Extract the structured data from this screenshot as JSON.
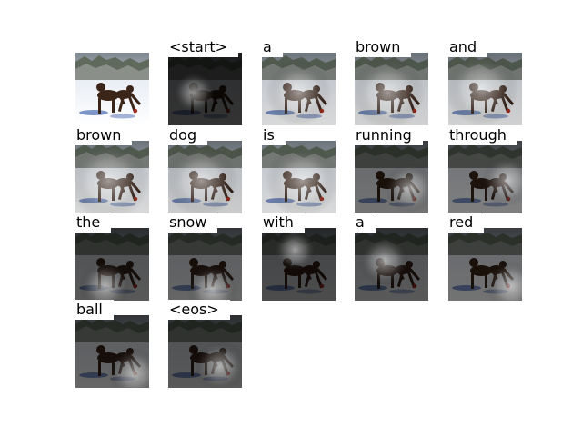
{
  "figure": {
    "source_image_name": "dog-in-snow-photo",
    "attention_words": [
      {
        "word": "<start>",
        "focus": [
          0.35,
          0.55
        ],
        "spread": 0.3,
        "dark": 0.8
      },
      {
        "word": "a",
        "focus": [
          0.5,
          0.55
        ],
        "spread": 0.45,
        "dark": 0.15
      },
      {
        "word": "brown",
        "focus": [
          0.45,
          0.55
        ],
        "spread": 0.5,
        "dark": 0.18
      },
      {
        "word": "and",
        "focus": [
          0.45,
          0.5
        ],
        "spread": 0.5,
        "dark": 0.18
      },
      {
        "word": "brown",
        "focus": [
          0.45,
          0.55
        ],
        "spread": 0.55,
        "dark": 0.15
      },
      {
        "word": "dog",
        "focus": [
          0.45,
          0.55
        ],
        "spread": 0.5,
        "dark": 0.2
      },
      {
        "word": "is",
        "focus": [
          0.55,
          0.55
        ],
        "spread": 0.5,
        "dark": 0.15
      },
      {
        "word": "running",
        "focus": [
          0.75,
          0.65
        ],
        "spread": 0.35,
        "dark": 0.55
      },
      {
        "word": "through",
        "focus": [
          0.8,
          0.55
        ],
        "spread": 0.35,
        "dark": 0.5
      },
      {
        "word": "the",
        "focus": [
          0.4,
          0.8
        ],
        "spread": 0.35,
        "dark": 0.65
      },
      {
        "word": "snow",
        "focus": [
          0.6,
          0.85
        ],
        "spread": 0.35,
        "dark": 0.6
      },
      {
        "word": "with",
        "focus": [
          0.45,
          0.3
        ],
        "spread": 0.3,
        "dark": 0.7
      },
      {
        "word": "a",
        "focus": [
          0.4,
          0.45
        ],
        "spread": 0.35,
        "dark": 0.65
      },
      {
        "word": "red",
        "focus": [
          0.85,
          0.8
        ],
        "spread": 0.35,
        "dark": 0.55
      },
      {
        "word": "ball",
        "focus": [
          0.8,
          0.8
        ],
        "spread": 0.35,
        "dark": 0.6
      },
      {
        "word": "<eos>",
        "focus": [
          0.7,
          0.7
        ],
        "spread": 0.35,
        "dark": 0.65
      }
    ]
  }
}
